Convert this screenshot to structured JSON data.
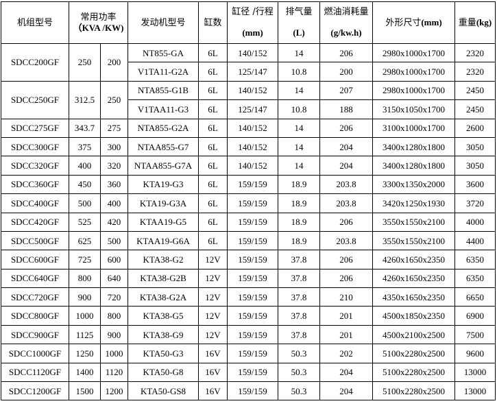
{
  "headers": {
    "model": "机组型号",
    "power": "常用功率",
    "power_unit": "（KVA /KW)",
    "engine": "发动机型号",
    "cyl": "缸数",
    "bore": "缸径 /行程",
    "bore_unit": "(mm)",
    "disp": "排气量",
    "disp_unit": "(L)",
    "fuel": "燃油消耗量",
    "fuel_unit": "(g/kw.h)",
    "dim": "外形尺寸",
    "dim_unit": "(mm)",
    "weight": "重量",
    "weight_unit": "(kg)"
  },
  "groups": [
    {
      "model": "SDCC200GF",
      "kva": "250",
      "kw": "200",
      "rows": [
        [
          "NT855-GA",
          "6L",
          "140/152",
          "14",
          "206",
          "2980x1000x1700",
          "2320"
        ],
        [
          "V1TA11-G2A",
          "6L",
          "125/147",
          "10.8",
          "200",
          "2980x1000x1700",
          "2320"
        ]
      ]
    },
    {
      "model": "SDCC250GF",
      "kva": "312.5",
      "kw": "250",
      "rows": [
        [
          "NTA855-G1B",
          "6L",
          "140/152",
          "14",
          "207",
          "2980x1000x1700",
          "2450"
        ],
        [
          "V1TAA11-G3",
          "6L",
          "125/147",
          "10.8",
          "188",
          "3150x1050x1700",
          "2450"
        ]
      ]
    },
    {
      "model": "SDCC275GF",
      "kva": "343.7",
      "kw": "275",
      "rows": [
        [
          "NTA855-G2A",
          "6L",
          "140/152",
          "14",
          "206",
          "3100x1000x1700",
          "2600"
        ]
      ]
    },
    {
      "model": "SDCC300GF",
      "kva": "375",
      "kw": "300",
      "rows": [
        [
          "NTAA855-G7",
          "6L",
          "140/152",
          "14",
          "204",
          "3400x1280x1800",
          "3050"
        ]
      ]
    },
    {
      "model": "SDCC320GF",
      "kva": "400",
      "kw": "320",
      "rows": [
        [
          "NTAA855-G7A",
          "6L",
          "140/152",
          "14",
          "204",
          "3400x1280x1800",
          "3050"
        ]
      ]
    },
    {
      "model": "SDCC360GF",
      "kva": "450",
      "kw": "360",
      "rows": [
        [
          "KTA19-G3",
          "6L",
          "159/159",
          "18.9",
          "203.8",
          "3300x1350x2000",
          "3600"
        ]
      ]
    },
    {
      "model": "SDCC400GF",
      "kva": "500",
      "kw": "400",
      "rows": [
        [
          "KTA19-G3A",
          "6L",
          "159/159",
          "18.9",
          "203.8",
          "3420x1250x1930",
          "3720"
        ]
      ]
    },
    {
      "model": "SDCC420GF",
      "kva": "525",
      "kw": "420",
      "rows": [
        [
          "KTAA19-G5",
          "6L",
          "159/159",
          "18.9",
          "206",
          "3550x1550x2100",
          "4000"
        ]
      ]
    },
    {
      "model": "SDCC500GF",
      "kva": "625",
      "kw": "500",
      "rows": [
        [
          "KTAA19-G6A",
          "6L",
          "159/159",
          "18.9",
          "203.8",
          "3550x1550x2100",
          "4400"
        ]
      ]
    },
    {
      "model": "SDCC600GF",
      "kva": "725",
      "kw": "600",
      "rows": [
        [
          "KTA38-G2",
          "12V",
          "159/159",
          "37.8",
          "206",
          "4260x1650x2350",
          "6350"
        ]
      ]
    },
    {
      "model": "SDCC640GF",
      "kva": "800",
      "kw": "640",
      "rows": [
        [
          "KTA38-G2B",
          "12V",
          "159/159",
          "37.8",
          "206",
          "4260x1650x2350",
          "6350"
        ]
      ]
    },
    {
      "model": "SDCC720GF",
      "kva": "900",
      "kw": "720",
      "rows": [
        [
          "KTA38-G2A",
          "12V",
          "159/159",
          "37.8",
          "210",
          "4350x1650x2350",
          "6650"
        ]
      ]
    },
    {
      "model": "SDCC800GF",
      "kva": "1000",
      "kw": "800",
      "rows": [
        [
          "KTA38-G5",
          "12V",
          "159/159",
          "37.8",
          "201",
          "4500x1850x2350",
          "6900"
        ]
      ]
    },
    {
      "model": "SDCC900GF",
      "kva": "1125",
      "kw": "900",
      "rows": [
        [
          "KTA38-G9",
          "12V",
          "159/159",
          "37.8",
          "201",
          "4500x2100x2500",
          "7500"
        ]
      ]
    },
    {
      "model": "SDCC1000GF",
      "kva": "1250",
      "kw": "1000",
      "rows": [
        [
          "KTA50-G3",
          "16V",
          "159/159",
          "50.3",
          "202",
          "5100x2280x2500",
          "9600"
        ]
      ]
    },
    {
      "model": "SDCC1120GF",
      "kva": "1400",
      "kw": "1120",
      "rows": [
        [
          "KTA50-G8",
          "16V",
          "159/159",
          "50.3",
          "204",
          "5100x2280x2500",
          "13000"
        ]
      ]
    },
    {
      "model": "SDCC1200GF",
      "kva": "1500",
      "kw": "1200",
      "rows": [
        [
          "KTA50-GS8",
          "16V",
          "159/159",
          "50.3",
          "204",
          "5100x2280x2500",
          "13000"
        ]
      ]
    }
  ]
}
